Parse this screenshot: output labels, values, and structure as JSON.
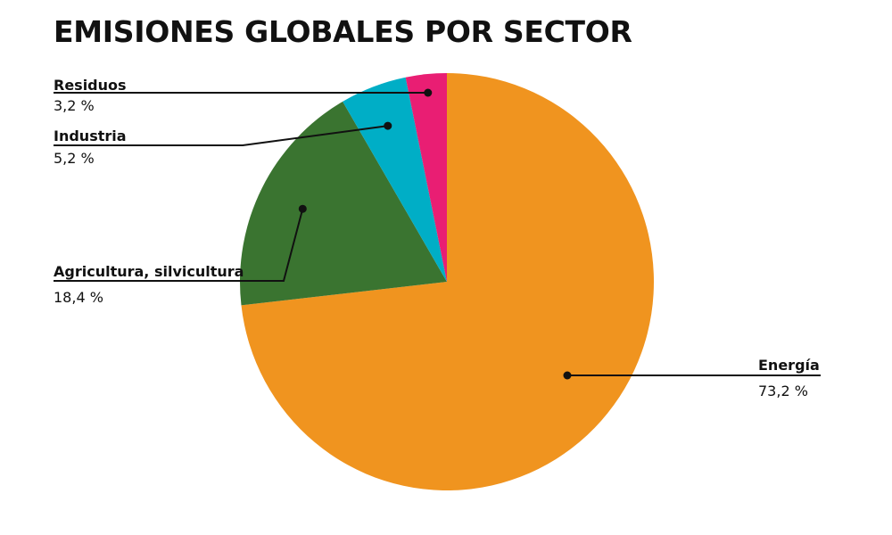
{
  "chart_data": {
    "type": "pie",
    "title": "EMISIONES GLOBALES POR SECTOR",
    "slices": [
      {
        "name": "Energía",
        "value": 73.2,
        "label": "73,2 %",
        "color": "#f0941f"
      },
      {
        "name": "Agricultura, silvicultura",
        "value": 18.4,
        "label": "18,4 %",
        "color": "#3a7430"
      },
      {
        "name": "Industria",
        "value": 5.2,
        "label": "5,2 %",
        "color": "#00aec6"
      },
      {
        "name": "Residuos",
        "value": 3.2,
        "label": "3,2 %",
        "color": "#e91e73"
      }
    ],
    "start_angle": "12 o'clock",
    "direction": "clockwise"
  }
}
